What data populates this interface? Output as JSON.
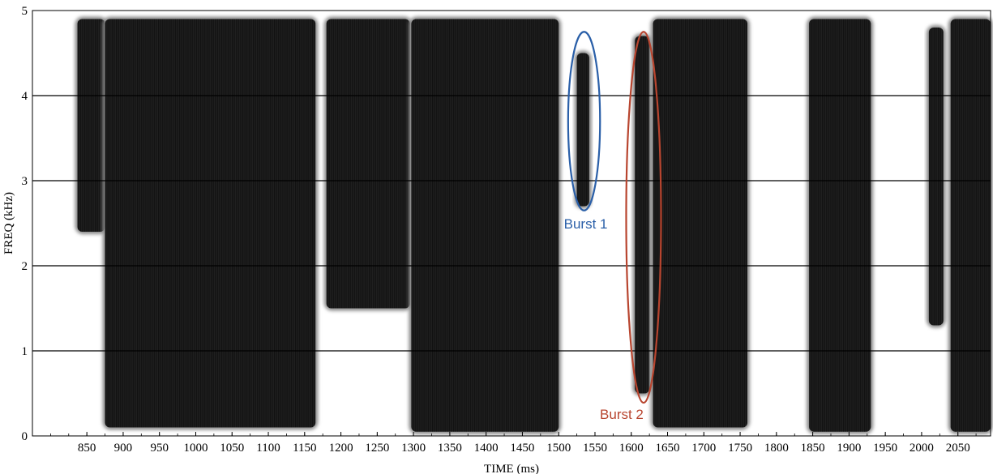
{
  "chart_data": {
    "type": "heatmap",
    "title": "",
    "xlabel": "TIME (ms)",
    "ylabel": "FREQ (kHz)",
    "xlim": [
      775,
      2095
    ],
    "ylim": [
      0,
      5
    ],
    "x_ticks": [
      850,
      900,
      950,
      1000,
      1050,
      1100,
      1150,
      1200,
      1250,
      1300,
      1350,
      1400,
      1450,
      1500,
      1550,
      1600,
      1650,
      1700,
      1750,
      1800,
      1850,
      1900,
      1950,
      2000,
      2050
    ],
    "y_ticks": [
      0,
      1,
      2,
      3,
      4,
      5
    ],
    "grid": "horizontal lines at 1-4 kHz",
    "energy_regions": [
      {
        "t_start": 837,
        "t_end": 875,
        "f_low": 2.4,
        "f_high": 4.9
      },
      {
        "t_start": 875,
        "t_end": 1165,
        "f_low": 0.1,
        "f_high": 4.9
      },
      {
        "t_start": 1180,
        "t_end": 1295,
        "f_low": 1.5,
        "f_high": 4.9
      },
      {
        "t_start": 1297,
        "t_end": 1500,
        "f_low": 0.05,
        "f_high": 4.9
      },
      {
        "t_start": 1525,
        "t_end": 1542,
        "f_low": 2.7,
        "f_high": 4.5
      },
      {
        "t_start": 1605,
        "t_end": 1625,
        "f_low": 0.5,
        "f_high": 4.7
      },
      {
        "t_start": 1630,
        "t_end": 1760,
        "f_low": 0.1,
        "f_high": 4.9
      },
      {
        "t_start": 1845,
        "t_end": 1930,
        "f_low": 0.05,
        "f_high": 4.9
      },
      {
        "t_start": 2010,
        "t_end": 2030,
        "f_low": 1.3,
        "f_high": 4.8
      },
      {
        "t_start": 2040,
        "t_end": 2095,
        "f_low": 0.05,
        "f_high": 4.9
      }
    ],
    "annotations": [
      {
        "label": "Burst 1",
        "color": "#2a5fa8",
        "t_center": 1535,
        "f_center": 3.7,
        "t_halfwidth": 22,
        "f_halfheight": 1.05
      },
      {
        "label": "Burst 2",
        "color": "#b8452f",
        "t_center": 1617,
        "f_center": 2.57,
        "t_halfwidth": 24,
        "f_halfheight": 2.18
      }
    ]
  }
}
